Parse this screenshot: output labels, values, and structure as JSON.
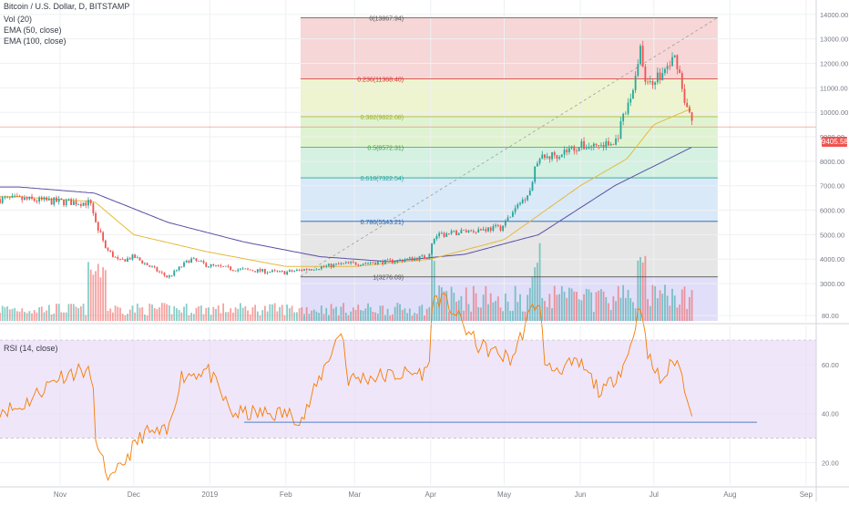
{
  "header": {
    "title": "Bitcoin / U.S. Dollar, D, BITSTAMP",
    "indicators": [
      "Vol (20)",
      "EMA (50, close)",
      "EMA (100, close)"
    ],
    "rsi_label": "RSI (14, close)"
  },
  "colors": {
    "bull": "#26a69a",
    "bear": "#ef5350",
    "ema50": "#e6b93a",
    "ema100": "#5b4fa3",
    "rsi": "#f57c00",
    "rsi_band": "#eadcf8",
    "fib_line": "#4f7fbf"
  },
  "price_readout": "9405.58",
  "chart_data": [
    {
      "type": "candlestick",
      "title": "Bitcoin / U.S. Dollar, D, BITSTAMP",
      "x_ticks": [
        "Nov",
        "Dec",
        "2019",
        "Feb",
        "Mar",
        "Apr",
        "May",
        "Jun",
        "Jul",
        "Aug",
        "Sep"
      ],
      "y_ticks": [
        3000,
        4000,
        5000,
        6000,
        7000,
        8000,
        9000,
        10000,
        11000,
        12000,
        13000,
        14000,
        15000
      ],
      "y_tick_labels": [
        "3000.00",
        "4000.00",
        "5000.00",
        "6000.00",
        "7000.00",
        "8000.00",
        "9000.00",
        "10000.00",
        "11000.00",
        "12000.00",
        "13000.00",
        "14000.00",
        "15000.00"
      ],
      "ylim": [
        2000,
        15200
      ],
      "last_price": 9405.58,
      "candles_sampled": [
        [
          "2018-10-15",
          6450
        ],
        [
          "2018-10-31",
          6350
        ],
        [
          "2018-11-14",
          6300
        ],
        [
          "2018-11-15",
          5600
        ],
        [
          "2018-11-20",
          4400
        ],
        [
          "2018-11-25",
          3900
        ],
        [
          "2018-12-01",
          4100
        ],
        [
          "2018-12-15",
          3250
        ],
        [
          "2018-12-24",
          4000
        ],
        [
          "2018-12-31",
          3750
        ],
        [
          "2019-01-10",
          3600
        ],
        [
          "2019-01-31",
          3450
        ],
        [
          "2019-02-10",
          3600
        ],
        [
          "2019-02-24",
          3800
        ],
        [
          "2019-03-15",
          3900
        ],
        [
          "2019-03-31",
          4100
        ],
        [
          "2019-04-02",
          4900
        ],
        [
          "2019-04-15",
          5150
        ],
        [
          "2019-04-30",
          5300
        ],
        [
          "2019-05-12",
          6900
        ],
        [
          "2019-05-14",
          8000
        ],
        [
          "2019-05-31",
          8600
        ],
        [
          "2019-06-15",
          8700
        ],
        [
          "2019-06-22",
          10700
        ],
        [
          "2019-06-26",
          13000
        ],
        [
          "2019-06-27",
          11200
        ],
        [
          "2019-07-04",
          11500
        ],
        [
          "2019-07-10",
          12300
        ],
        [
          "2019-07-14",
          10300
        ],
        [
          "2019-07-17",
          9405
        ]
      ],
      "ema50_sampled": [
        [
          "2018-10-15",
          6550
        ],
        [
          "2018-11-15",
          6350
        ],
        [
          "2018-12-01",
          5000
        ],
        [
          "2018-12-31",
          4300
        ],
        [
          "2019-02-01",
          3700
        ],
        [
          "2019-03-01",
          3700
        ],
        [
          "2019-04-01",
          4000
        ],
        [
          "2019-05-01",
          4800
        ],
        [
          "2019-06-01",
          7000
        ],
        [
          "2019-06-20",
          8100
        ],
        [
          "2019-07-01",
          9500
        ],
        [
          "2019-07-15",
          10100
        ]
      ],
      "ema100_sampled": [
        [
          "2018-10-15",
          6950
        ],
        [
          "2018-11-15",
          6700
        ],
        [
          "2018-12-15",
          5500
        ],
        [
          "2019-01-15",
          4700
        ],
        [
          "2019-02-15",
          4100
        ],
        [
          "2019-03-15",
          3900
        ],
        [
          "2019-04-15",
          4200
        ],
        [
          "2019-05-15",
          5000
        ],
        [
          "2019-06-15",
          7000
        ],
        [
          "2019-07-01",
          7800
        ],
        [
          "2019-07-17",
          8600
        ]
      ],
      "fibonacci": [
        {
          "label": "0(13867.94)",
          "price": 13867.94
        },
        {
          "label": "0.236(11368.40)",
          "price": 11368.4
        },
        {
          "label": "0.382(9822.08)",
          "price": 9822.08
        },
        {
          "label": "0.5(8572.31)",
          "price": 8572.31
        },
        {
          "label": "0.618(7322.54)",
          "price": 7322.54
        },
        {
          "label": "0.786(5543.21)",
          "price": 5543.21
        },
        {
          "label": "1(3276.09)",
          "price": 3276.09
        }
      ],
      "fib_colors": [
        "#f4cccc",
        "#e9f1c3",
        "#d8f0c6",
        "#c9eedb",
        "#cfe4f5",
        "#e0e0e0",
        "#d9d6f7"
      ],
      "fib_label_colors": [
        "#555555",
        "#d32f2f",
        "#a0b030",
        "#43a047",
        "#26a69a",
        "#1e5fb4",
        "#555555"
      ],
      "trendline": [
        [
          "2019-02-07",
          3300
        ],
        [
          "2019-07-27",
          13870
        ]
      ]
    },
    {
      "type": "line",
      "title": "RSI (14, close)",
      "y_ticks": [
        20,
        40,
        60,
        80
      ],
      "y_tick_labels": [
        "20.00",
        "40.00",
        "60.00",
        "80.00"
      ],
      "ylim": [
        6,
        100
      ],
      "bands": [
        30,
        70
      ],
      "support_line": 36.5,
      "values_sampled": [
        [
          "2018-10-15",
          42
        ],
        [
          "2018-10-31",
          55
        ],
        [
          "2018-11-10",
          58
        ],
        [
          "2018-11-14",
          55
        ],
        [
          "2018-11-16",
          25
        ],
        [
          "2018-11-22",
          12
        ],
        [
          "2018-11-28",
          22
        ],
        [
          "2018-12-05",
          32
        ],
        [
          "2018-12-15",
          32
        ],
        [
          "2018-12-20",
          55
        ],
        [
          "2018-12-31",
          58
        ],
        [
          "2019-01-10",
          40
        ],
        [
          "2019-02-01",
          40
        ],
        [
          "2019-02-08",
          38
        ],
        [
          "2019-02-18",
          62
        ],
        [
          "2019-02-24",
          75
        ],
        [
          "2019-02-26",
          54
        ],
        [
          "2019-03-31",
          57
        ],
        [
          "2019-04-02",
          88
        ],
        [
          "2019-04-08",
          85
        ],
        [
          "2019-04-20",
          68
        ],
        [
          "2019-05-04",
          62
        ],
        [
          "2019-05-12",
          82
        ],
        [
          "2019-05-15",
          87
        ],
        [
          "2019-05-18",
          58
        ],
        [
          "2019-06-01",
          60
        ],
        [
          "2019-06-10",
          48
        ],
        [
          "2019-06-20",
          62
        ],
        [
          "2019-06-26",
          87
        ],
        [
          "2019-06-28",
          64
        ],
        [
          "2019-07-04",
          53
        ],
        [
          "2019-07-10",
          63
        ],
        [
          "2019-07-17",
          40
        ]
      ]
    }
  ]
}
